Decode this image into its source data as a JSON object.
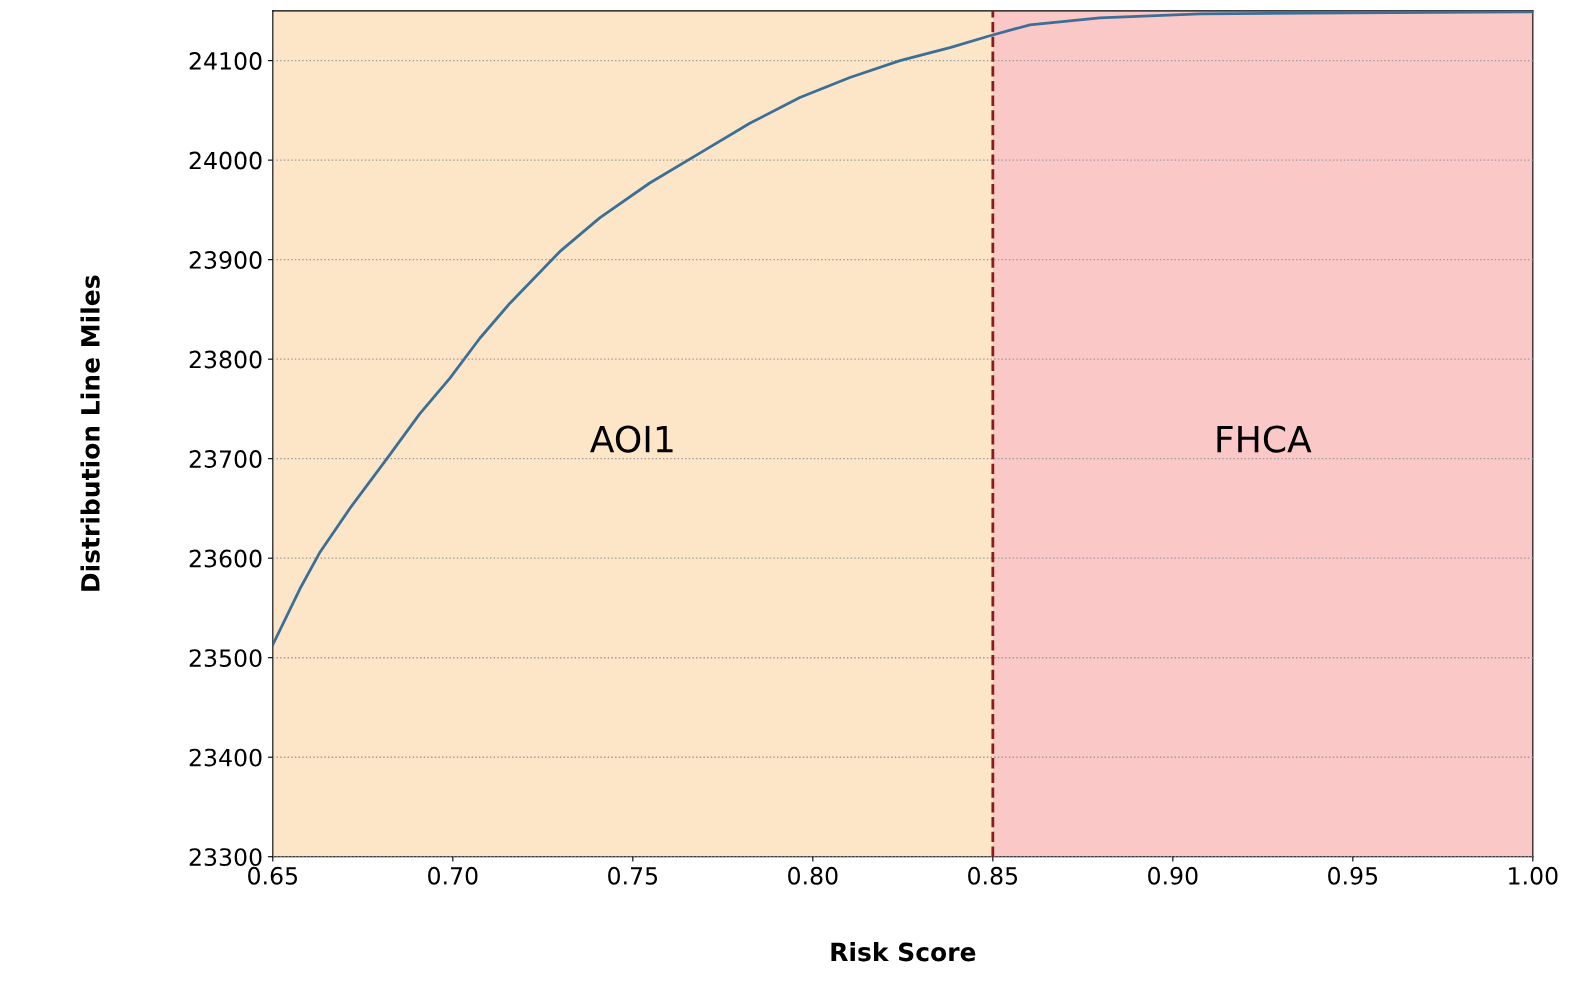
{
  "chart_data": {
    "type": "line",
    "xlabel": "Risk Score",
    "ylabel": "Distribution Line Miles",
    "xlim": [
      0.65,
      1.0
    ],
    "ylim": [
      23300,
      24150
    ],
    "xticks": [
      0.65,
      {
        "value": 0.7,
        "label": "0.70"
      },
      0.75,
      {
        "value": 0.8,
        "label": "0.80"
      },
      0.85,
      {
        "value": 0.9,
        "label": "0.90"
      },
      0.95,
      {
        "value": 1.0,
        "label": "1.00"
      }
    ],
    "yticks": [
      23300,
      23400,
      23500,
      23600,
      23700,
      23800,
      23900,
      24000,
      24100
    ],
    "grid": "y",
    "legend": false,
    "line_style": "solid",
    "marker": "none",
    "series": [
      {
        "color": "#3b6f97",
        "x": [
          0.65,
          0.6575,
          0.6631,
          0.6714,
          0.6817,
          0.6908,
          0.6992,
          0.7075,
          0.7158,
          0.7297,
          0.7408,
          0.7547,
          0.7686,
          0.7825,
          0.7964,
          0.8103,
          0.8242,
          0.8381,
          0.8492,
          0.8603,
          0.8797,
          0.9075,
          0.949,
          1.0
        ],
        "values": [
          23513,
          23569,
          23606,
          23650,
          23700,
          23745,
          23781,
          23821,
          23856,
          23908,
          23942,
          23977,
          24007,
          24037,
          24063,
          24083,
          24100,
          24113,
          24125,
          24136,
          24143,
          24147,
          24148,
          24149
        ]
      }
    ],
    "bands": [
      {
        "axis": "x",
        "from": 0.65,
        "to": 0.85,
        "label": "AOI1",
        "color": "#fde5c8"
      },
      {
        "axis": "x",
        "from": 0.85,
        "to": 1.0,
        "label": "FHCA",
        "color": "#fbc8c8"
      }
    ],
    "ref_lines": [
      {
        "axis": "x",
        "value": 0.85,
        "label": null,
        "color": "#8b1a1a",
        "line_style": "dashed"
      }
    ]
  }
}
